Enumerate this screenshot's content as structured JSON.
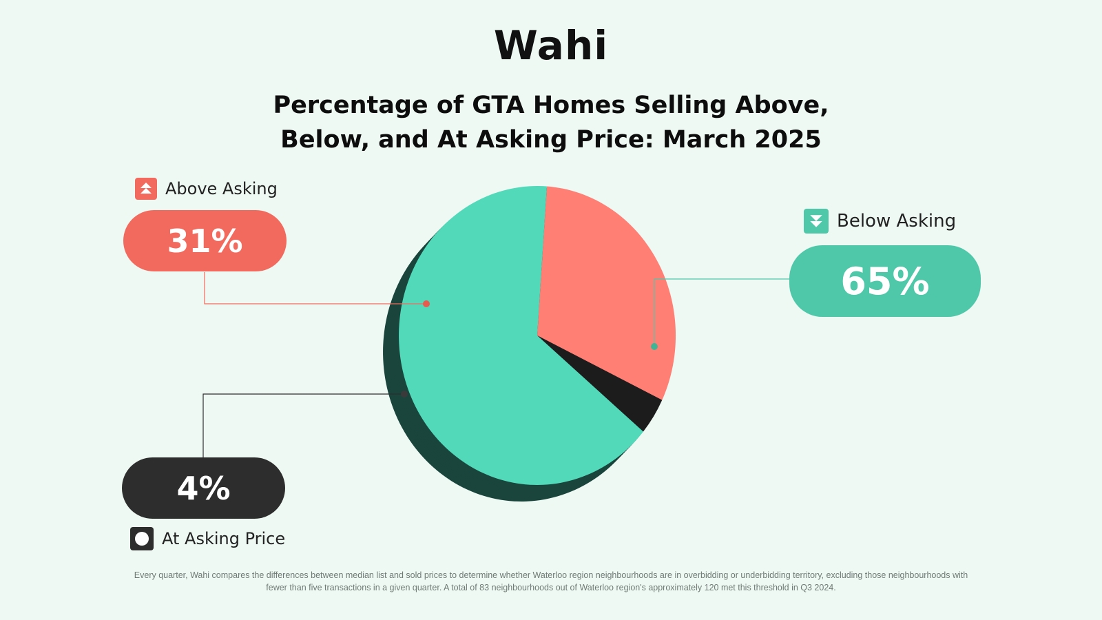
{
  "brand": {
    "logo_text": "Wahi",
    "accent": "#f26a5d"
  },
  "chart_data": {
    "type": "pie",
    "title": "Percentage of GTA Homes Selling Above, Below, and At Asking Price: March 2025",
    "title_lines": [
      "Percentage of GTA Homes Selling Above,",
      "Below, and At Asking Price: March 2025"
    ],
    "slices": [
      {
        "label": "Above Asking",
        "value": 31,
        "display": "31%",
        "color": "#ff7f75",
        "icon": "double-arrow-up-icon"
      },
      {
        "label": "At Asking Price",
        "value": 4,
        "display": "4%",
        "color": "#1c1c1c",
        "icon": "circle-icon"
      },
      {
        "label": "Below Asking",
        "value": 65,
        "display": "65%",
        "color": "#52d9ba",
        "icon": "double-arrow-down-icon"
      }
    ],
    "colors": {
      "above_pill": "#f26a5d",
      "below_pill": "#4fc8aa",
      "at_pill": "#2d2d2d"
    }
  },
  "footnote": "Every quarter, Wahi compares the differences between median list and sold prices to determine whether Waterloo region neighbourhoods are in overbidding or underbidding territory, excluding those neighbourhoods with fewer than five transactions in a given quarter. A total of 83 neighbourhoods out of Waterloo region's approximately 120 met this threshold in Q3 2024."
}
